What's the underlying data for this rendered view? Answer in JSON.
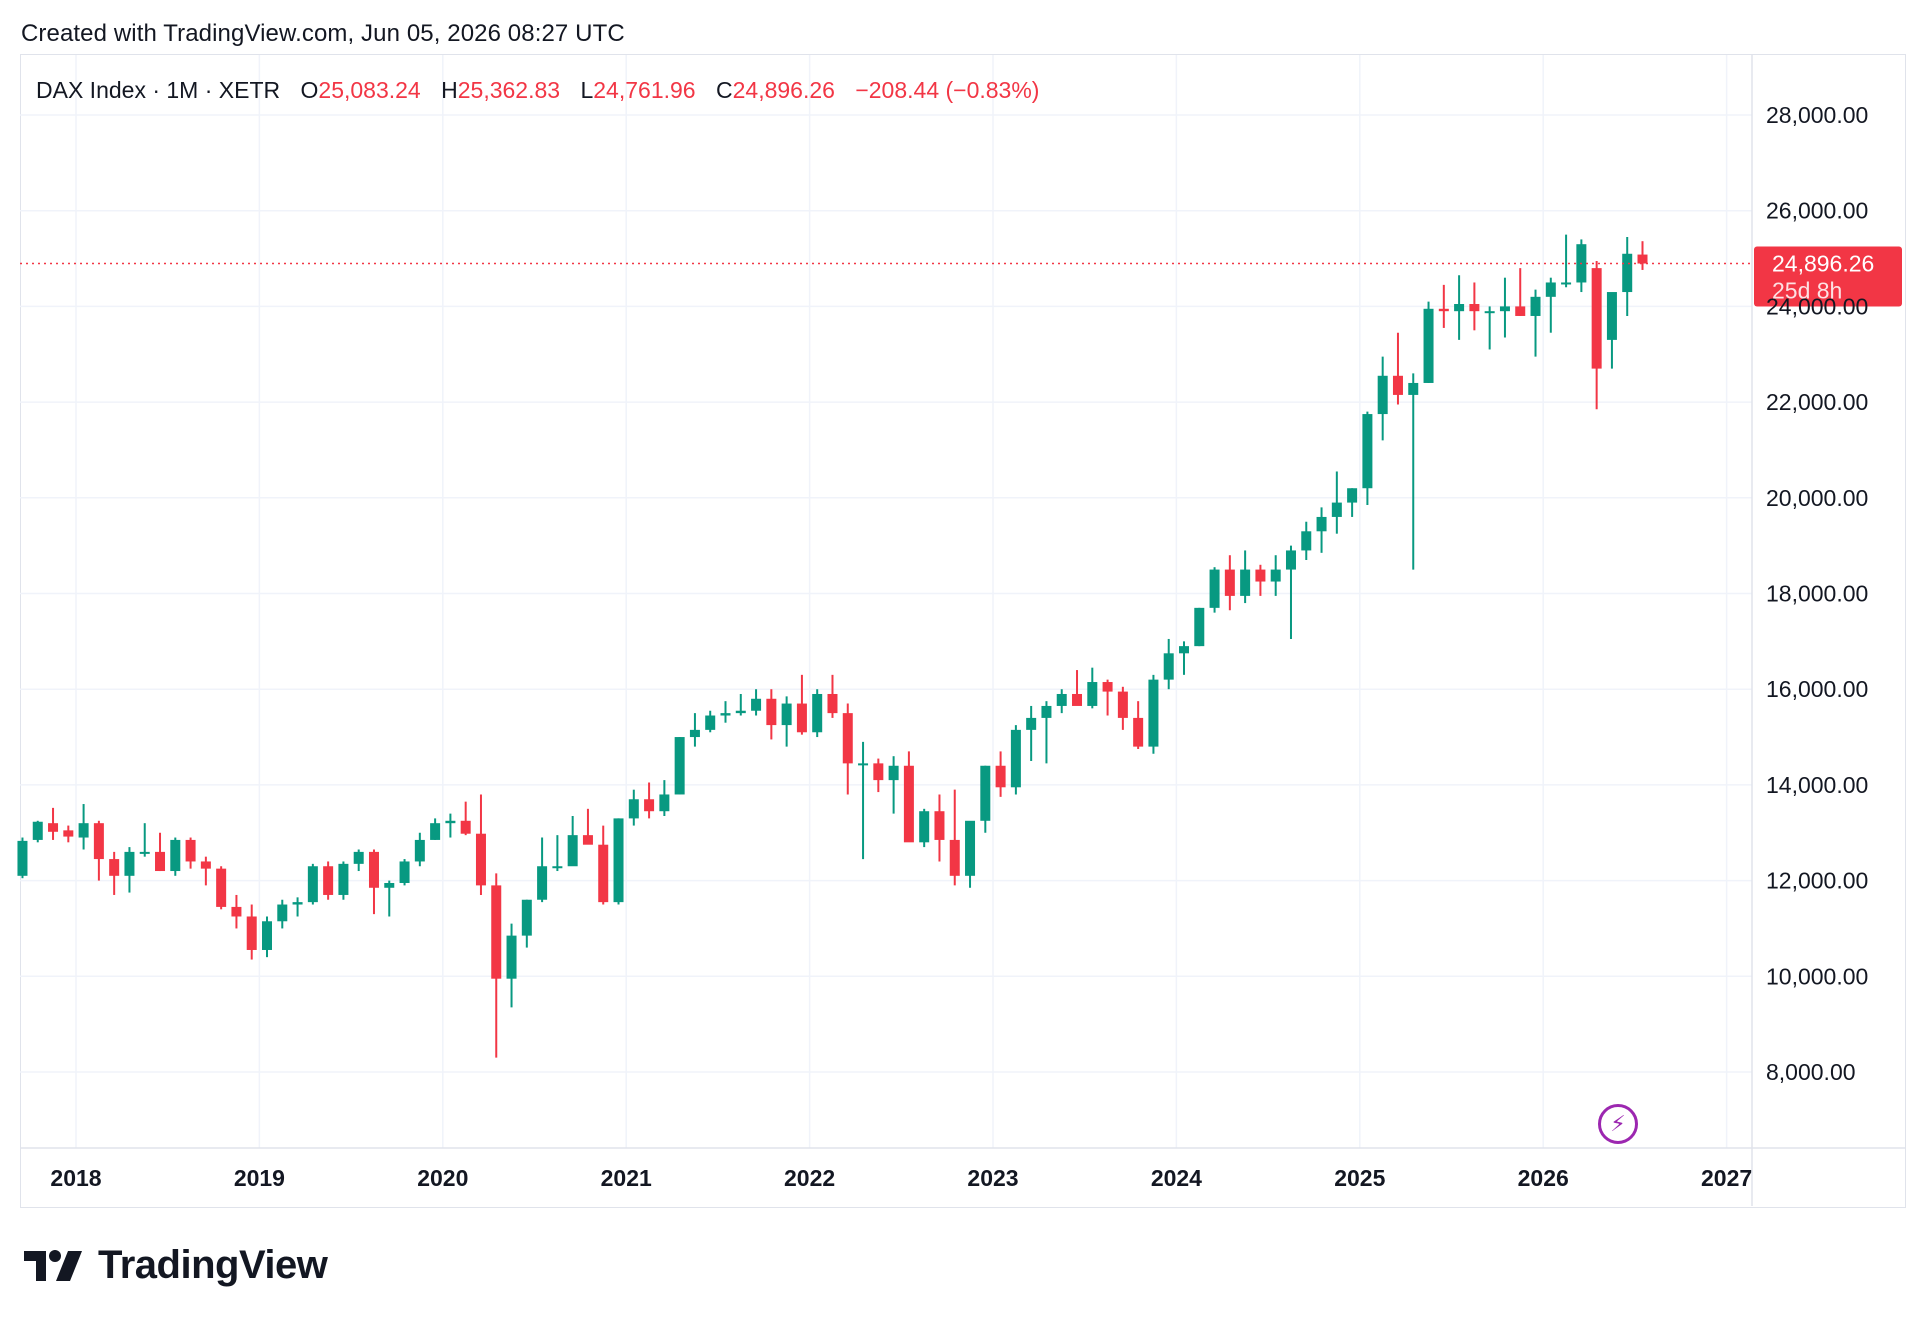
{
  "header": {
    "created": "Created with TradingView.com, Jun 05, 2026 08:27 UTC"
  },
  "legend": {
    "symbol": "DAX Index · 1M · XETR",
    "open_label": "O",
    "open": "25,083.24",
    "high_label": "H",
    "high": "25,362.83",
    "low_label": "L",
    "low": "24,761.96",
    "close_label": "C",
    "close": "24,896.26",
    "change": "−208.44 (−0.83%)"
  },
  "price_tag": {
    "price": "24,896.26",
    "countdown": "25d 8h"
  },
  "brand": {
    "name": "TradingView"
  },
  "colors": {
    "up": "#089981",
    "down": "#f23645",
    "grid": "#f0f3fa",
    "text": "#131722"
  },
  "icons": {
    "flash": "lightning-icon",
    "logo": "tradingview-logo-icon"
  },
  "chart_data": {
    "type": "candlestick",
    "symbol": "DAX Index",
    "interval": "1M",
    "exchange": "XETR",
    "ylim": [
      6800,
      29200
    ],
    "y_ticks": [
      {
        "value": 8000,
        "label": "8,000.00"
      },
      {
        "value": 10000,
        "label": "10,000.00"
      },
      {
        "value": 12000,
        "label": "12,000.00"
      },
      {
        "value": 14000,
        "label": "14,000.00"
      },
      {
        "value": 16000,
        "label": "16,000.00"
      },
      {
        "value": 18000,
        "label": "18,000.00"
      },
      {
        "value": 20000,
        "label": "20,000.00"
      },
      {
        "value": 22000,
        "label": "22,000.00"
      },
      {
        "value": 24000,
        "label": "24,000.00"
      },
      {
        "value": 26000,
        "label": "26,000.00"
      },
      {
        "value": 28000,
        "label": "28,000.00"
      }
    ],
    "x_ticks": [
      "2018",
      "2019",
      "2020",
      "2021",
      "2022",
      "2023",
      "2024",
      "2025",
      "2026",
      "2027"
    ],
    "last_price": 24896.26,
    "start": "2017-09",
    "candles": [
      {
        "o": 12100,
        "h": 12900,
        "l": 12050,
        "c": 12830
      },
      {
        "o": 12850,
        "h": 13250,
        "l": 12800,
        "c": 13230
      },
      {
        "o": 13200,
        "h": 13520,
        "l": 12850,
        "c": 13020
      },
      {
        "o": 13050,
        "h": 13150,
        "l": 12800,
        "c": 12920
      },
      {
        "o": 12900,
        "h": 13600,
        "l": 12650,
        "c": 13200
      },
      {
        "o": 13200,
        "h": 13250,
        "l": 12000,
        "c": 12450
      },
      {
        "o": 12450,
        "h": 12600,
        "l": 11700,
        "c": 12100
      },
      {
        "o": 12100,
        "h": 12700,
        "l": 11750,
        "c": 12600
      },
      {
        "o": 12600,
        "h": 13200,
        "l": 12500,
        "c": 12600
      },
      {
        "o": 12600,
        "h": 13000,
        "l": 12200,
        "c": 12200
      },
      {
        "o": 12200,
        "h": 12900,
        "l": 12100,
        "c": 12850
      },
      {
        "o": 12850,
        "h": 12900,
        "l": 12250,
        "c": 12400
      },
      {
        "o": 12400,
        "h": 12500,
        "l": 11900,
        "c": 12250
      },
      {
        "o": 12250,
        "h": 12300,
        "l": 11400,
        "c": 11450
      },
      {
        "o": 11450,
        "h": 11700,
        "l": 11000,
        "c": 11250
      },
      {
        "o": 11250,
        "h": 11500,
        "l": 10350,
        "c": 10550
      },
      {
        "o": 10550,
        "h": 11250,
        "l": 10400,
        "c": 11150
      },
      {
        "o": 11150,
        "h": 11600,
        "l": 11000,
        "c": 11500
      },
      {
        "o": 11500,
        "h": 11650,
        "l": 11250,
        "c": 11550
      },
      {
        "o": 11550,
        "h": 12350,
        "l": 11500,
        "c": 12300
      },
      {
        "o": 12300,
        "h": 12400,
        "l": 11600,
        "c": 11700
      },
      {
        "o": 11700,
        "h": 12400,
        "l": 11600,
        "c": 12350
      },
      {
        "o": 12350,
        "h": 12650,
        "l": 12200,
        "c": 12600
      },
      {
        "o": 12600,
        "h": 12650,
        "l": 11300,
        "c": 11850
      },
      {
        "o": 11850,
        "h": 12000,
        "l": 11250,
        "c": 11950
      },
      {
        "o": 11950,
        "h": 12450,
        "l": 11900,
        "c": 12400
      },
      {
        "o": 12400,
        "h": 13000,
        "l": 12300,
        "c": 12850
      },
      {
        "o": 12850,
        "h": 13300,
        "l": 12850,
        "c": 13200
      },
      {
        "o": 13200,
        "h": 13400,
        "l": 12900,
        "c": 13250
      },
      {
        "o": 13250,
        "h": 13650,
        "l": 12950,
        "c": 12980
      },
      {
        "o": 12980,
        "h": 13800,
        "l": 11700,
        "c": 11900
      },
      {
        "o": 11900,
        "h": 12150,
        "l": 8300,
        "c": 9950
      },
      {
        "o": 9950,
        "h": 11100,
        "l": 9350,
        "c": 10850
      },
      {
        "o": 10850,
        "h": 11600,
        "l": 10600,
        "c": 11600
      },
      {
        "o": 11600,
        "h": 12900,
        "l": 11550,
        "c": 12300
      },
      {
        "o": 12300,
        "h": 12950,
        "l": 12200,
        "c": 12300
      },
      {
        "o": 12300,
        "h": 13350,
        "l": 12400,
        "c": 12950
      },
      {
        "o": 12950,
        "h": 13500,
        "l": 12850,
        "c": 12750
      },
      {
        "o": 12750,
        "h": 13150,
        "l": 11500,
        "c": 11550
      },
      {
        "o": 11550,
        "h": 13300,
        "l": 11500,
        "c": 13300
      },
      {
        "o": 13300,
        "h": 13900,
        "l": 13150,
        "c": 13700
      },
      {
        "o": 13700,
        "h": 14050,
        "l": 13300,
        "c": 13450
      },
      {
        "o": 13450,
        "h": 14100,
        "l": 13350,
        "c": 13800
      },
      {
        "o": 13800,
        "h": 15000,
        "l": 13800,
        "c": 15000
      },
      {
        "o": 15000,
        "h": 15500,
        "l": 14800,
        "c": 15150
      },
      {
        "o": 15150,
        "h": 15550,
        "l": 15100,
        "c": 15450
      },
      {
        "o": 15450,
        "h": 15750,
        "l": 15300,
        "c": 15500
      },
      {
        "o": 15500,
        "h": 15900,
        "l": 15450,
        "c": 15550
      },
      {
        "o": 15550,
        "h": 16000,
        "l": 15450,
        "c": 15800
      },
      {
        "o": 15800,
        "h": 16000,
        "l": 14950,
        "c": 15250
      },
      {
        "o": 15250,
        "h": 15850,
        "l": 14800,
        "c": 15700
      },
      {
        "o": 15700,
        "h": 16300,
        "l": 15050,
        "c": 15100
      },
      {
        "o": 15100,
        "h": 16000,
        "l": 15000,
        "c": 15900
      },
      {
        "o": 15900,
        "h": 16300,
        "l": 15400,
        "c": 15500
      },
      {
        "o": 15500,
        "h": 15700,
        "l": 13800,
        "c": 14450
      },
      {
        "o": 14450,
        "h": 14900,
        "l": 12450,
        "c": 14450
      },
      {
        "o": 14450,
        "h": 14550,
        "l": 13850,
        "c": 14100
      },
      {
        "o": 14100,
        "h": 14600,
        "l": 13400,
        "c": 14400
      },
      {
        "o": 14400,
        "h": 14700,
        "l": 12900,
        "c": 12800
      },
      {
        "o": 12800,
        "h": 13500,
        "l": 12700,
        "c": 13450
      },
      {
        "o": 13450,
        "h": 13800,
        "l": 12400,
        "c": 12850
      },
      {
        "o": 12850,
        "h": 13900,
        "l": 11900,
        "c": 12100
      },
      {
        "o": 12100,
        "h": 13150,
        "l": 11850,
        "c": 13250
      },
      {
        "o": 13250,
        "h": 14400,
        "l": 13000,
        "c": 14400
      },
      {
        "o": 14400,
        "h": 14700,
        "l": 13750,
        "c": 13950
      },
      {
        "o": 13950,
        "h": 15250,
        "l": 13800,
        "c": 15150
      },
      {
        "o": 15150,
        "h": 15650,
        "l": 14500,
        "c": 15400
      },
      {
        "o": 15400,
        "h": 15750,
        "l": 14450,
        "c": 15650
      },
      {
        "o": 15650,
        "h": 16000,
        "l": 15500,
        "c": 15900
      },
      {
        "o": 15900,
        "h": 16400,
        "l": 15800,
        "c": 15650
      },
      {
        "o": 15650,
        "h": 16450,
        "l": 15600,
        "c": 16150
      },
      {
        "o": 16150,
        "h": 16200,
        "l": 15450,
        "c": 15950
      },
      {
        "o": 15950,
        "h": 16050,
        "l": 15150,
        "c": 15400
      },
      {
        "o": 15400,
        "h": 15750,
        "l": 14750,
        "c": 14800
      },
      {
        "o": 14800,
        "h": 16300,
        "l": 14650,
        "c": 16200
      },
      {
        "o": 16200,
        "h": 17050,
        "l": 16000,
        "c": 16750
      },
      {
        "o": 16750,
        "h": 17000,
        "l": 16300,
        "c": 16900
      },
      {
        "o": 16900,
        "h": 17700,
        "l": 16900,
        "c": 17700
      },
      {
        "o": 17700,
        "h": 18550,
        "l": 17600,
        "c": 18500
      },
      {
        "o": 18500,
        "h": 18800,
        "l": 17650,
        "c": 17950
      },
      {
        "o": 17950,
        "h": 18900,
        "l": 17800,
        "c": 18500
      },
      {
        "o": 18500,
        "h": 18600,
        "l": 17950,
        "c": 18250
      },
      {
        "o": 18250,
        "h": 18800,
        "l": 17950,
        "c": 18500
      },
      {
        "o": 18500,
        "h": 19000,
        "l": 17050,
        "c": 18900
      },
      {
        "o": 18900,
        "h": 19500,
        "l": 18700,
        "c": 19300
      },
      {
        "o": 19300,
        "h": 19800,
        "l": 18850,
        "c": 19600
      },
      {
        "o": 19600,
        "h": 20550,
        "l": 19250,
        "c": 19900
      },
      {
        "o": 19900,
        "h": 20200,
        "l": 19600,
        "c": 20200
      },
      {
        "o": 20200,
        "h": 21800,
        "l": 19850,
        "c": 21750
      },
      {
        "o": 21750,
        "h": 22950,
        "l": 21200,
        "c": 22550
      },
      {
        "o": 22550,
        "h": 23450,
        "l": 21950,
        "c": 22150
      },
      {
        "o": 22150,
        "h": 22600,
        "l": 18500,
        "c": 22400
      },
      {
        "o": 22400,
        "h": 24100,
        "l": 22400,
        "c": 23950
      },
      {
        "o": 23950,
        "h": 24450,
        "l": 23550,
        "c": 23900
      },
      {
        "o": 23900,
        "h": 24650,
        "l": 23300,
        "c": 24050
      },
      {
        "o": 24050,
        "h": 24500,
        "l": 23500,
        "c": 23900
      },
      {
        "o": 23900,
        "h": 24000,
        "l": 23100,
        "c": 23900
      },
      {
        "o": 23900,
        "h": 24600,
        "l": 23350,
        "c": 24000
      },
      {
        "o": 24000,
        "h": 24800,
        "l": 23800,
        "c": 23800
      },
      {
        "o": 23800,
        "h": 24350,
        "l": 22950,
        "c": 24200
      },
      {
        "o": 24200,
        "h": 24600,
        "l": 23450,
        "c": 24500
      },
      {
        "o": 24500,
        "h": 25500,
        "l": 24400,
        "c": 24500
      },
      {
        "o": 24500,
        "h": 25400,
        "l": 24300,
        "c": 25300
      },
      {
        "o": 24800,
        "h": 24950,
        "l": 21850,
        "c": 22700
      },
      {
        "o": 23300,
        "h": 24200,
        "l": 22700,
        "c": 24300
      },
      {
        "o": 24300,
        "h": 25450,
        "l": 23800,
        "c": 25100
      },
      {
        "o": 25083.24,
        "h": 25362.83,
        "l": 24761.96,
        "c": 24896.26
      }
    ]
  }
}
